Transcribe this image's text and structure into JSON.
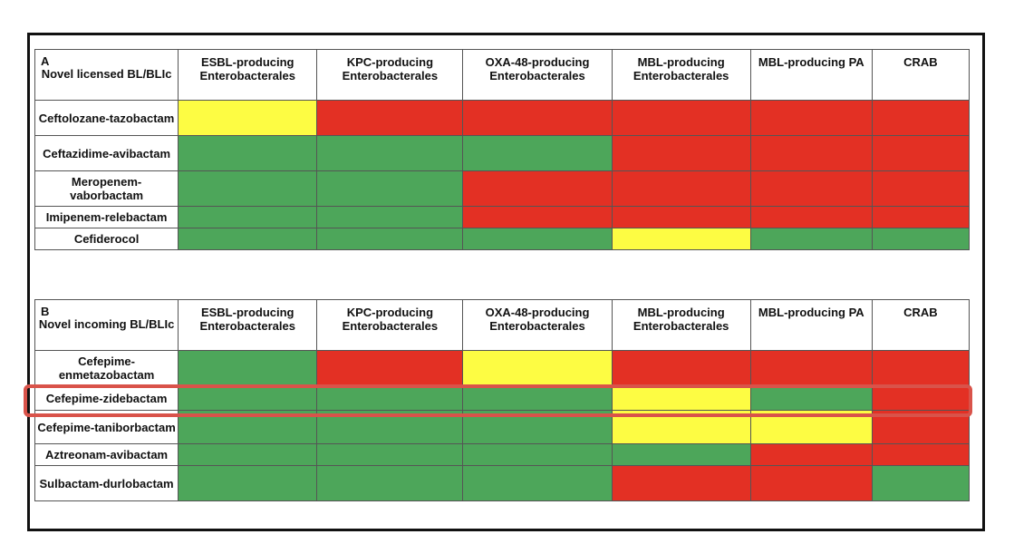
{
  "columns": [
    "ESBL-producing Enterobacterales",
    "KPC-producing Enterobacterales",
    "OXA-48-producing Enterobacterales",
    "MBL-producing Enterobacterales",
    "MBL-producing PA",
    "CRAB"
  ],
  "colors": {
    "green": "#4da65a",
    "red": "#e33024",
    "yellow": "#fdfc43",
    "highlight": "#d9534a"
  },
  "panel_a": {
    "letter": "A",
    "corner_label": "Novel licensed BL/BLIc",
    "rows": [
      {
        "drug": "Ceftolozane-tazobactam",
        "cells": [
          "yellow",
          "red",
          "red",
          "red",
          "red",
          "red"
        ]
      },
      {
        "drug": "Ceftazidime-avibactam",
        "cells": [
          "green",
          "green",
          "green",
          "red",
          "red",
          "red"
        ]
      },
      {
        "drug": "Meropenem-vaborbactam",
        "cells": [
          "green",
          "green",
          "red",
          "red",
          "red",
          "red"
        ]
      },
      {
        "drug": "Imipenem-relebactam",
        "cells": [
          "green",
          "green",
          "red",
          "red",
          "red",
          "red"
        ]
      },
      {
        "drug": "Cefiderocol",
        "cells": [
          "green",
          "green",
          "green",
          "yellow",
          "green",
          "green"
        ]
      }
    ]
  },
  "panel_b": {
    "letter": "B",
    "corner_label": "Novel incoming BL/BLIc",
    "rows": [
      {
        "drug": "Cefepime-enmetazobactam",
        "cells": [
          "green",
          "red",
          "yellow",
          "red",
          "red",
          "red"
        ]
      },
      {
        "drug": "Cefepime-zidebactam",
        "cells": [
          "green",
          "green",
          "green",
          "yellow",
          "green",
          "red"
        ]
      },
      {
        "drug": "Cefepime-taniborbactam",
        "cells": [
          "green",
          "green",
          "green",
          "yellow",
          "yellow",
          "red"
        ]
      },
      {
        "drug": "Aztreonam-avibactam",
        "cells": [
          "green",
          "green",
          "green",
          "green",
          "red",
          "red"
        ]
      },
      {
        "drug": "Sulbactam-durlobactam",
        "cells": [
          "green",
          "green",
          "green",
          "red",
          "red",
          "green"
        ]
      }
    ]
  }
}
